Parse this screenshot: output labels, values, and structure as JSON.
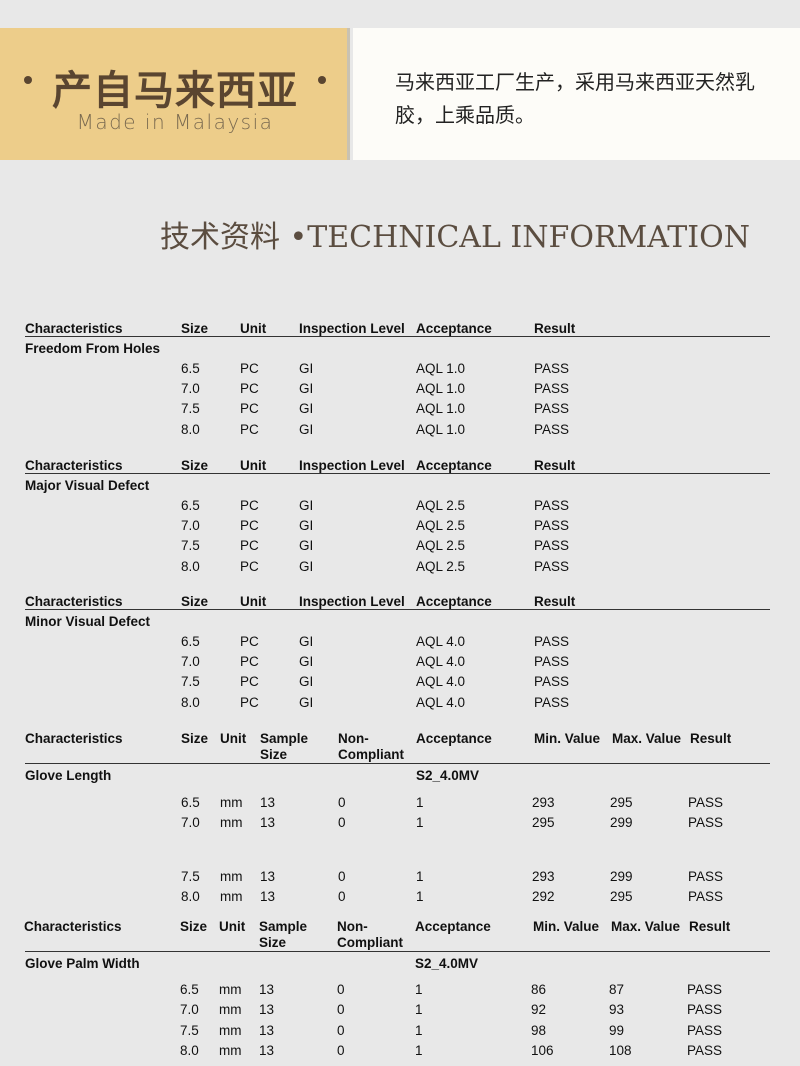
{
  "banner": {
    "title_cn": "产自马来西亚",
    "title_en": "Made in Malaysia",
    "description": "马来西亚工厂生产，采用马来西亚天然乳胶，上乘品质。"
  },
  "section_title": "技术资料 •TECHNICAL INFORMATION",
  "aql_tables": [
    {
      "headers": [
        "Characteristics",
        "Size",
        "Unit",
        "Inspection Level",
        "Acceptance",
        "Result"
      ],
      "name": "Freedom From Holes",
      "rows": [
        [
          "6.5",
          "PC",
          "GI",
          "AQL 1.0",
          "PASS"
        ],
        [
          "7.0",
          "PC",
          "GI",
          "AQL 1.0",
          "PASS"
        ],
        [
          "7.5",
          "PC",
          "GI",
          "AQL 1.0",
          "PASS"
        ],
        [
          "8.0",
          "PC",
          "GI",
          "AQL 1.0",
          "PASS"
        ]
      ]
    },
    {
      "headers": [
        "Characteristics",
        "Size",
        "Unit",
        "Inspection Level",
        "Acceptance",
        "Result"
      ],
      "name": "Major Visual Defect",
      "rows": [
        [
          "6.5",
          "PC",
          "GI",
          "AQL 2.5",
          "PASS"
        ],
        [
          "7.0",
          "PC",
          "GI",
          "AQL 2.5",
          "PASS"
        ],
        [
          "7.5",
          "PC",
          "GI",
          "AQL 2.5",
          "PASS"
        ],
        [
          "8.0",
          "PC",
          "GI",
          "AQL 2.5",
          "PASS"
        ]
      ]
    },
    {
      "headers": [
        "Characteristics",
        "Size",
        "Unit",
        "Inspection Level",
        "Acceptance",
        "Result"
      ],
      "name": "Minor Visual Defect",
      "rows": [
        [
          "6.5",
          "PC",
          "GI",
          "AQL 4.0",
          "PASS"
        ],
        [
          "7.0",
          "PC",
          "GI",
          "AQL 4.0",
          "PASS"
        ],
        [
          "7.5",
          "PC",
          "GI",
          "AQL 4.0",
          "PASS"
        ],
        [
          "8.0",
          "PC",
          "GI",
          "AQL 4.0",
          "PASS"
        ]
      ]
    }
  ],
  "measure_tables": [
    {
      "headers": [
        "Characteristics",
        "Size",
        "Unit",
        "Sample\nSize",
        "Non-\nCompliant",
        "Acceptance",
        "Min. Value",
        "Max. Value",
        "Result"
      ],
      "name": "Glove Length",
      "acceptance": "S2_4.0MV",
      "rows": [
        [
          "6.5",
          "mm",
          "13",
          "0",
          "1",
          "293",
          "295",
          "PASS"
        ],
        [
          "7.0",
          "mm",
          "13",
          "0",
          "1",
          "295",
          "299",
          "PASS"
        ],
        [
          "7.5",
          "mm",
          "13",
          "0",
          "1",
          "293",
          "299",
          "PASS"
        ],
        [
          "8.0",
          "mm",
          "13",
          "0",
          "1",
          "292",
          "295",
          "PASS"
        ]
      ]
    },
    {
      "headers": [
        "Characteristics",
        "Size",
        "Unit",
        "Sample\nSize",
        "Non-\nCompliant",
        "Acceptance",
        "Min. Value",
        "Max. Value",
        "Result"
      ],
      "name": "Glove Palm Width",
      "acceptance": "S2_4.0MV",
      "rows": [
        [
          "6.5",
          "mm",
          "13",
          "0",
          "1",
          "86",
          "87",
          "PASS"
        ],
        [
          "7.0",
          "mm",
          "13",
          "0",
          "1",
          "92",
          "93",
          "PASS"
        ],
        [
          "7.5",
          "mm",
          "13",
          "0",
          "1",
          "98",
          "99",
          "PASS"
        ],
        [
          "8.0",
          "mm",
          "13",
          "0",
          "1",
          "106",
          "108",
          "PASS"
        ]
      ]
    }
  ]
}
